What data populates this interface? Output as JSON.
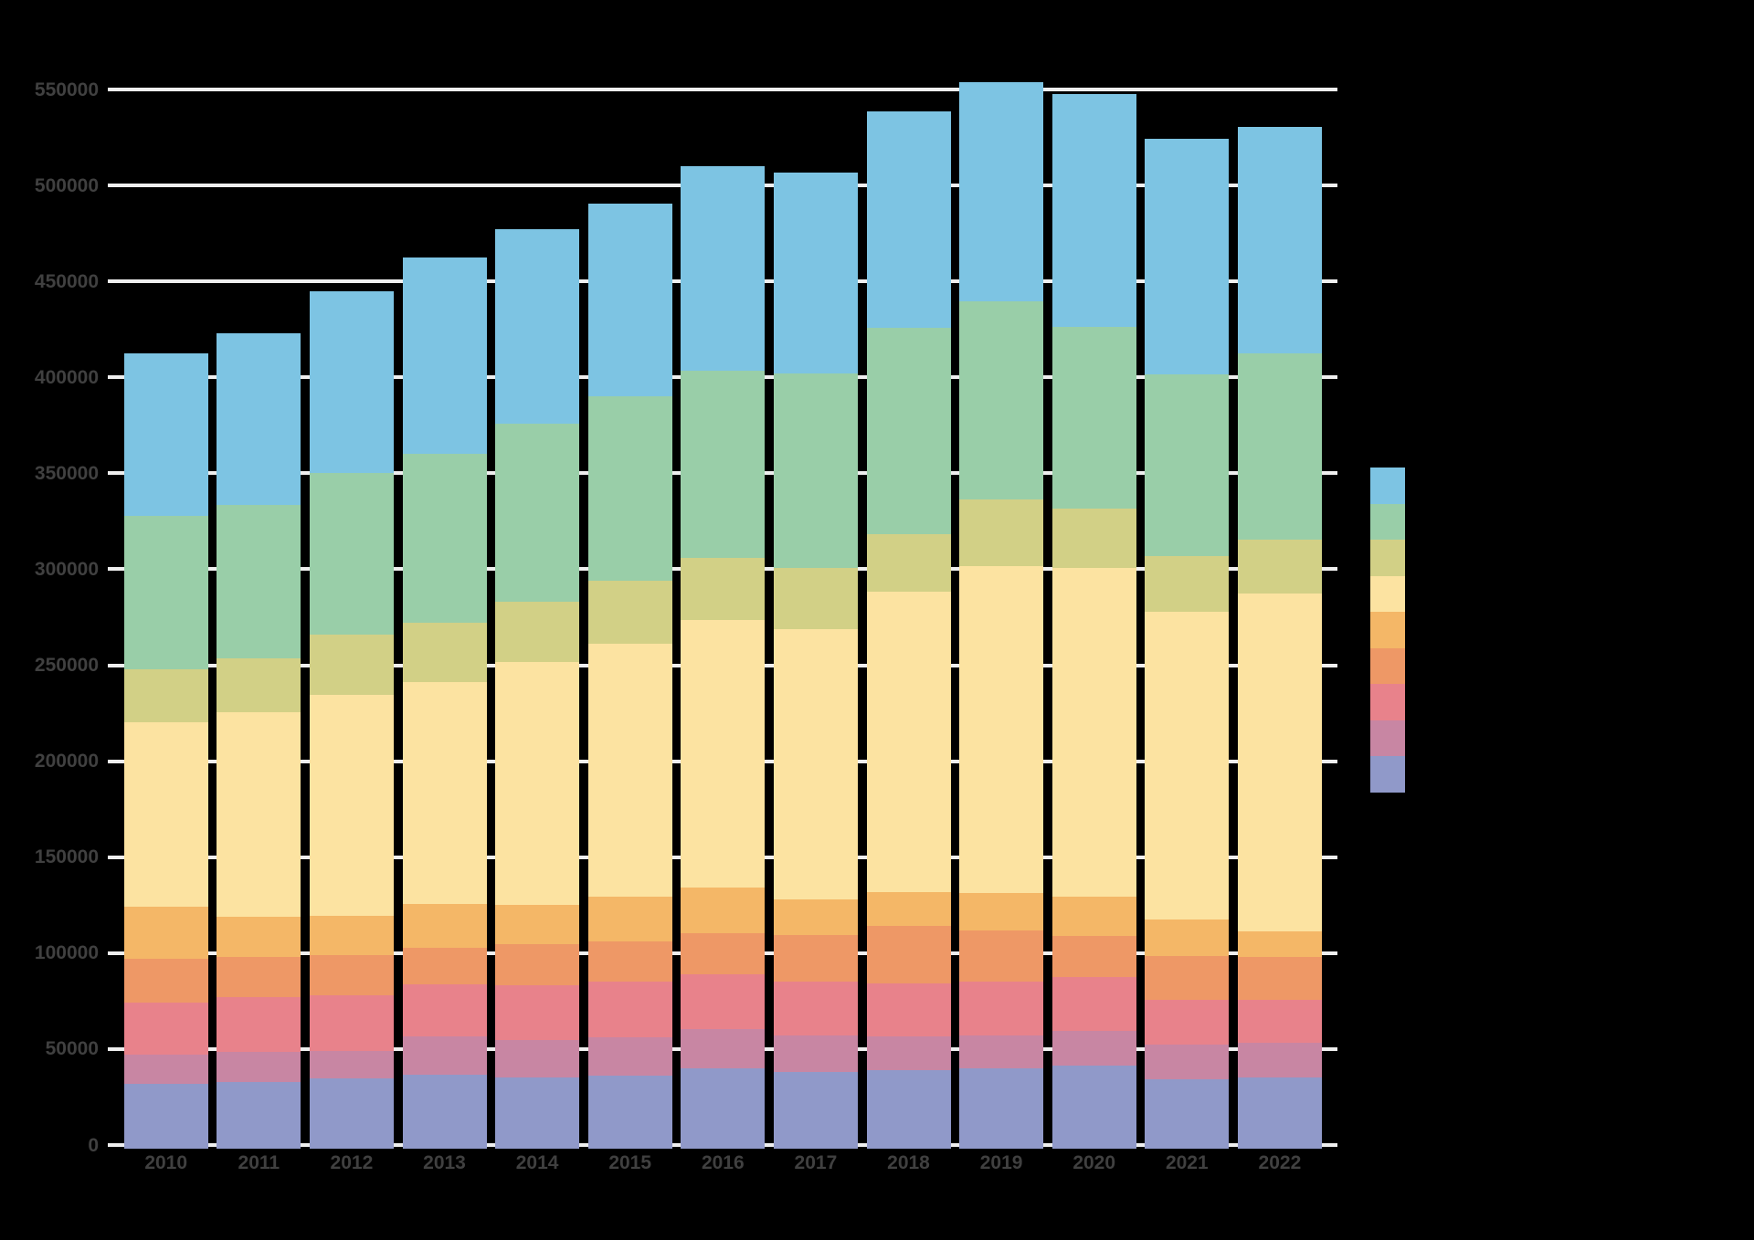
{
  "chart_data": {
    "type": "bar",
    "stacked": true,
    "title": "",
    "xlabel": "",
    "ylabel": "",
    "categories": [
      "2010",
      "2011",
      "2012",
      "2013",
      "2014",
      "2015",
      "2016",
      "2017",
      "2018",
      "2019",
      "2020",
      "2021",
      "2022"
    ],
    "series": [
      {
        "name": "purple-blue",
        "color": "#9099c9",
        "values": [
          32800,
          33800,
          35700,
          37600,
          36000,
          37100,
          40800,
          39000,
          40000,
          40800,
          42300,
          35200,
          36000
        ]
      },
      {
        "name": "mauve",
        "color": "#c886a3",
        "values": [
          15200,
          15700,
          14300,
          20100,
          19800,
          20000,
          20600,
          19000,
          17400,
          17400,
          18300,
          18200,
          18200
        ]
      },
      {
        "name": "red",
        "color": "#e8828b",
        "values": [
          27300,
          28500,
          29100,
          27000,
          28300,
          28900,
          28600,
          28000,
          27600,
          27800,
          27700,
          23000,
          22200
        ]
      },
      {
        "name": "orange",
        "color": "#ee9866",
        "values": [
          22700,
          21100,
          20800,
          19000,
          21700,
          21100,
          21300,
          24500,
          30300,
          26900,
          21800,
          23000,
          22600
        ]
      },
      {
        "name": "orange-yellow",
        "color": "#f4b767",
        "values": [
          27300,
          20900,
          20600,
          23000,
          20300,
          23300,
          23800,
          18300,
          17500,
          19400,
          20300,
          19100,
          13100
        ]
      },
      {
        "name": "light-yellow",
        "color": "#fce3a1",
        "values": [
          95800,
          106300,
          115000,
          115500,
          126400,
          131900,
          139300,
          140800,
          156500,
          170100,
          171100,
          160500,
          176200
        ]
      },
      {
        "name": "yellow-green",
        "color": "#d2d086",
        "values": [
          27900,
          28300,
          31600,
          30900,
          31400,
          32700,
          32600,
          31900,
          30000,
          34800,
          31000,
          29000,
          28100
        ]
      },
      {
        "name": "green",
        "color": "#99cea8",
        "values": [
          79900,
          80100,
          84000,
          87800,
          92900,
          96200,
          97600,
          101400,
          107300,
          103200,
          94800,
          94700,
          97100
        ]
      },
      {
        "name": "light-blue",
        "color": "#7dc4e3",
        "values": [
          84600,
          89000,
          94900,
          102600,
          101300,
          100400,
          106600,
          104700,
          112800,
          114500,
          121400,
          122400,
          117800
        ]
      }
    ],
    "y_ticks": [
      0,
      50000,
      100000,
      150000,
      200000,
      250000,
      300000,
      350000,
      400000,
      450000,
      500000,
      550000
    ],
    "ylim": [
      0,
      560000
    ],
    "grid": true,
    "legend_position": "right",
    "legend_labels_visible": false,
    "background_color": "#000000",
    "gridline_color": "#efefef",
    "tick_label_color": "#404040"
  }
}
